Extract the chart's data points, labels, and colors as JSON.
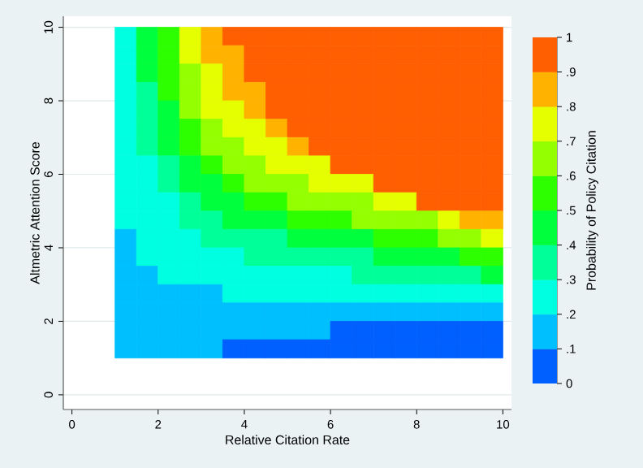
{
  "chart_data": {
    "type": "heatmap",
    "xlabel": "Relative Citation Rate",
    "ylabel": "Altmetric Attention Score",
    "clabel": "Probability of Policy Citation",
    "x": [
      1.25,
      1.75,
      2.25,
      2.75,
      3.25,
      3.75,
      4.25,
      4.75,
      5.25,
      5.75,
      6.25,
      6.75,
      7.25,
      7.75,
      8.25,
      8.75,
      9.25,
      9.75
    ],
    "y": [
      9.75,
      9.25,
      8.75,
      8.25,
      7.75,
      7.25,
      6.75,
      6.25,
      5.75,
      5.25,
      4.75,
      4.25,
      3.75,
      3.25,
      2.75,
      2.25,
      1.75,
      1.25
    ],
    "cells": [
      [
        0.25,
        0.45,
        0.55,
        0.75,
        0.85,
        0.95,
        0.95,
        0.95,
        0.95,
        0.95,
        0.95,
        0.95,
        0.95,
        0.95,
        0.95,
        0.95,
        0.95,
        0.95
      ],
      [
        0.25,
        0.45,
        0.55,
        0.75,
        0.85,
        0.85,
        0.95,
        0.95,
        0.95,
        0.95,
        0.95,
        0.95,
        0.95,
        0.95,
        0.95,
        0.95,
        0.95,
        0.95
      ],
      [
        0.25,
        0.45,
        0.55,
        0.65,
        0.75,
        0.85,
        0.95,
        0.95,
        0.95,
        0.95,
        0.95,
        0.95,
        0.95,
        0.95,
        0.95,
        0.95,
        0.95,
        0.95
      ],
      [
        0.25,
        0.35,
        0.55,
        0.65,
        0.75,
        0.85,
        0.85,
        0.95,
        0.95,
        0.95,
        0.95,
        0.95,
        0.95,
        0.95,
        0.95,
        0.95,
        0.95,
        0.95
      ],
      [
        0.25,
        0.35,
        0.45,
        0.65,
        0.75,
        0.75,
        0.85,
        0.95,
        0.95,
        0.95,
        0.95,
        0.95,
        0.95,
        0.95,
        0.95,
        0.95,
        0.95,
        0.95
      ],
      [
        0.25,
        0.35,
        0.45,
        0.55,
        0.65,
        0.75,
        0.75,
        0.85,
        0.95,
        0.95,
        0.95,
        0.95,
        0.95,
        0.95,
        0.95,
        0.95,
        0.95,
        0.95
      ],
      [
        0.25,
        0.35,
        0.45,
        0.55,
        0.65,
        0.65,
        0.75,
        0.75,
        0.85,
        0.95,
        0.95,
        0.95,
        0.95,
        0.95,
        0.95,
        0.95,
        0.95,
        0.95
      ],
      [
        0.25,
        0.25,
        0.35,
        0.45,
        0.55,
        0.65,
        0.65,
        0.75,
        0.75,
        0.75,
        0.95,
        0.95,
        0.95,
        0.95,
        0.95,
        0.95,
        0.95,
        0.95
      ],
      [
        0.25,
        0.25,
        0.35,
        0.45,
        0.45,
        0.55,
        0.65,
        0.65,
        0.65,
        0.75,
        0.75,
        0.75,
        0.95,
        0.95,
        0.95,
        0.95,
        0.95,
        0.95
      ],
      [
        0.25,
        0.25,
        0.25,
        0.35,
        0.45,
        0.45,
        0.55,
        0.55,
        0.65,
        0.65,
        0.65,
        0.65,
        0.75,
        0.75,
        0.95,
        0.95,
        0.95,
        0.95
      ],
      [
        0.25,
        0.25,
        0.25,
        0.35,
        0.35,
        0.45,
        0.45,
        0.45,
        0.55,
        0.55,
        0.55,
        0.65,
        0.65,
        0.65,
        0.65,
        0.75,
        0.85,
        0.85
      ],
      [
        0.15,
        0.25,
        0.25,
        0.25,
        0.35,
        0.35,
        0.35,
        0.35,
        0.45,
        0.45,
        0.45,
        0.45,
        0.55,
        0.55,
        0.55,
        0.65,
        0.65,
        0.75
      ],
      [
        0.15,
        0.25,
        0.25,
        0.25,
        0.25,
        0.25,
        0.35,
        0.35,
        0.35,
        0.35,
        0.35,
        0.35,
        0.45,
        0.45,
        0.45,
        0.45,
        0.55,
        0.55
      ],
      [
        0.15,
        0.15,
        0.25,
        0.25,
        0.25,
        0.25,
        0.25,
        0.25,
        0.25,
        0.25,
        0.25,
        0.35,
        0.35,
        0.35,
        0.35,
        0.35,
        0.35,
        0.45
      ],
      [
        0.15,
        0.15,
        0.15,
        0.15,
        0.15,
        0.25,
        0.25,
        0.25,
        0.25,
        0.25,
        0.25,
        0.25,
        0.25,
        0.25,
        0.25,
        0.25,
        0.25,
        0.25
      ],
      [
        0.15,
        0.15,
        0.15,
        0.15,
        0.15,
        0.15,
        0.15,
        0.15,
        0.15,
        0.15,
        0.15,
        0.15,
        0.15,
        0.15,
        0.15,
        0.15,
        0.15,
        0.15
      ],
      [
        0.15,
        0.15,
        0.15,
        0.15,
        0.15,
        0.15,
        0.15,
        0.15,
        0.15,
        0.15,
        0.05,
        0.05,
        0.05,
        0.05,
        0.05,
        0.05,
        0.05,
        0.05
      ],
      [
        0.15,
        0.15,
        0.15,
        0.15,
        0.15,
        0.05,
        0.05,
        0.05,
        0.05,
        0.05,
        0.05,
        0.05,
        0.05,
        0.05,
        0.05,
        0.05,
        0.05,
        0.05
      ]
    ],
    "colors": [
      "#0060ff",
      "#00bfff",
      "#00ffe1",
      "#00ff99",
      "#00ff3c",
      "#2dff00",
      "#94ff00",
      "#e5ff00",
      "#ffb300",
      "#ff5f00"
    ],
    "clim": [
      0,
      1
    ],
    "cticks": [
      0,
      {
        "value": 0.1,
        "label": ".1"
      },
      {
        "value": 0.2,
        "label": ".2"
      },
      {
        "value": 0.3,
        "label": ".3"
      },
      {
        "value": 0.4,
        "label": ".4"
      },
      {
        "value": 0.5,
        "label": ".5"
      },
      {
        "value": 0.6,
        "label": ".6"
      },
      {
        "value": 0.7,
        "label": ".7"
      },
      {
        "value": 0.8,
        "label": ".8"
      },
      {
        "value": 0.9,
        "label": ".9"
      },
      1
    ],
    "xlim": [
      -0.2,
      10.2
    ],
    "ylim": [
      -0.4,
      10.3
    ],
    "xticks": [
      0,
      2,
      4,
      6,
      8,
      10
    ],
    "yticks": [
      0,
      2,
      4,
      6,
      8,
      10
    ],
    "grid": "y"
  }
}
